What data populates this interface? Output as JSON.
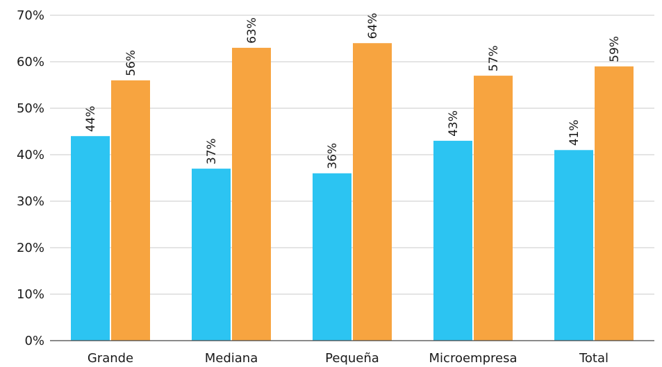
{
  "chart_data": {
    "type": "bar",
    "title": "",
    "xlabel": "",
    "ylabel": "",
    "categories": [
      "Grande",
      "Mediana",
      "Pequeña",
      "Microempresa",
      "Total"
    ],
    "series": [
      {
        "values": [
          44,
          37,
          36,
          43,
          41
        ],
        "color": "#2cc4f2"
      },
      {
        "values": [
          56,
          63,
          64,
          57,
          59
        ],
        "color": "#f7a440"
      }
    ],
    "data_labels": [
      [
        "44%",
        "37%",
        "36%",
        "43%",
        "41%"
      ],
      [
        "56%",
        "63%",
        "64%",
        "57%",
        "59%"
      ]
    ],
    "ylim": [
      0,
      70
    ],
    "yticks": [
      0,
      10,
      20,
      30,
      40,
      50,
      60,
      70
    ],
    "ytick_labels": [
      "0%",
      "10%",
      "20%",
      "30%",
      "40%",
      "50%",
      "60%",
      "70%"
    ],
    "grid": true,
    "legend": "none"
  }
}
